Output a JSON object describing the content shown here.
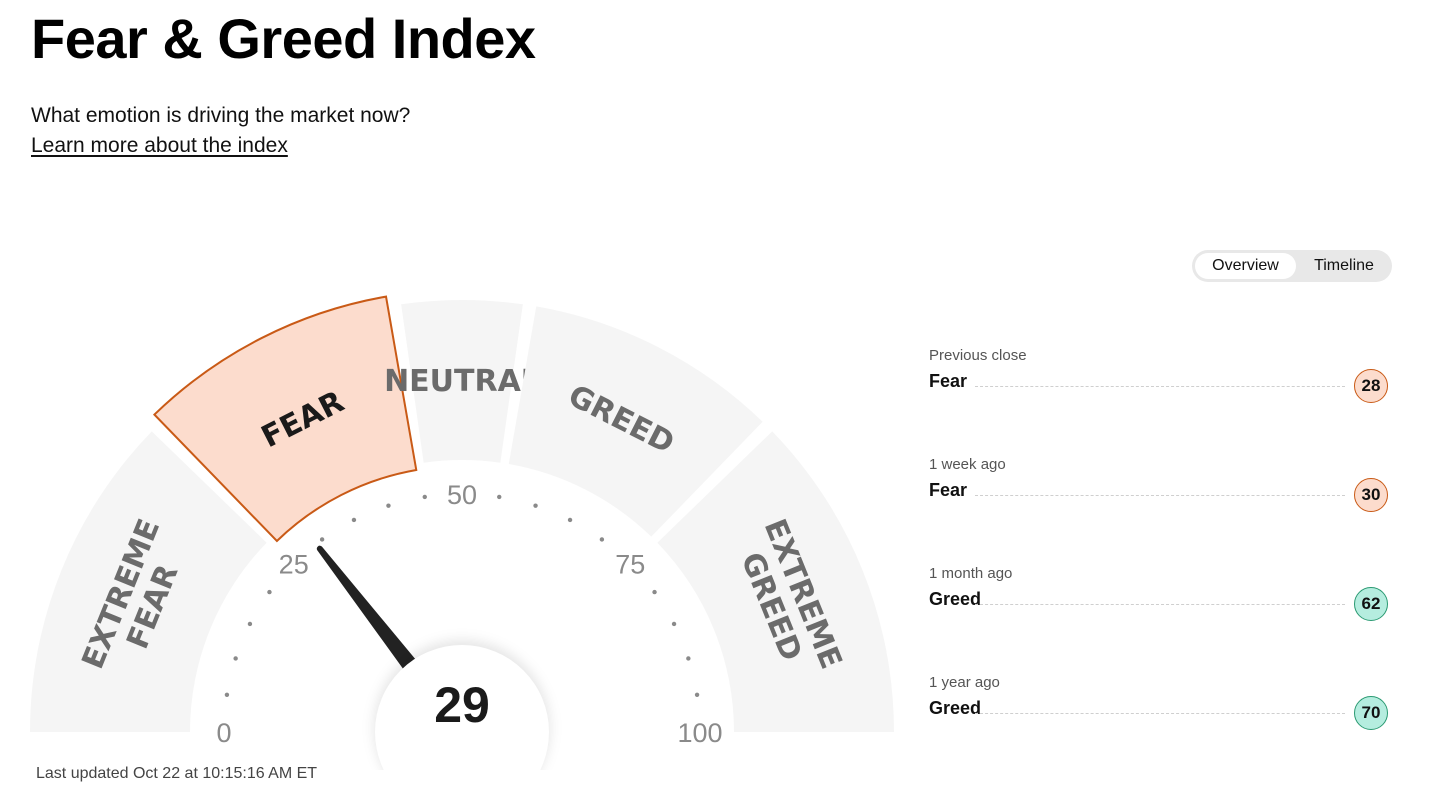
{
  "header": {
    "title": "Fear & Greed Index",
    "subtitle": "What emotion is driving the market now?",
    "learn_more": "Learn more about the index"
  },
  "view_toggle": {
    "options": [
      {
        "label": "Overview",
        "active": true
      },
      {
        "label": "Timeline",
        "active": false
      }
    ]
  },
  "gauge": {
    "value": 29,
    "value_label": "29",
    "min": 0,
    "max": 100,
    "active_segment": "FEAR",
    "scale_labels": [
      "0",
      "25",
      "50",
      "75",
      "100"
    ],
    "segments": [
      {
        "label_lines": [
          "EXTREME",
          "FEAR"
        ],
        "from": 0,
        "to": 25
      },
      {
        "label_lines": [
          "FEAR"
        ],
        "from": 25,
        "to": 45
      },
      {
        "label_lines": [
          "NEUTRAL"
        ],
        "from": 45,
        "to": 55
      },
      {
        "label_lines": [
          "GREED"
        ],
        "from": 55,
        "to": 75
      },
      {
        "label_lines": [
          "EXTREME",
          "GREED"
        ],
        "from": 75,
        "to": 100
      }
    ],
    "colors": {
      "segment_fill": "#f5f5f5",
      "active_fill": "#fcdccd",
      "active_stroke": "#c95a16",
      "label_text": "#6b6b6b",
      "active_label_text": "#1a1a1a",
      "needle": "#222222"
    }
  },
  "last_updated": "Last updated Oct 22 at 10:15:16 AM ET",
  "history": [
    {
      "period": "Previous close",
      "rating": "Fear",
      "value": "28",
      "tone": "fear"
    },
    {
      "period": "1 week ago",
      "rating": "Fear",
      "value": "30",
      "tone": "fear"
    },
    {
      "period": "1 month ago",
      "rating": "Greed",
      "value": "62",
      "tone": "greed"
    },
    {
      "period": "1 year ago",
      "rating": "Greed",
      "value": "70",
      "tone": "greed"
    }
  ],
  "history_colors": {
    "fear": "#fcdccd",
    "greed": "#b5eddf"
  }
}
